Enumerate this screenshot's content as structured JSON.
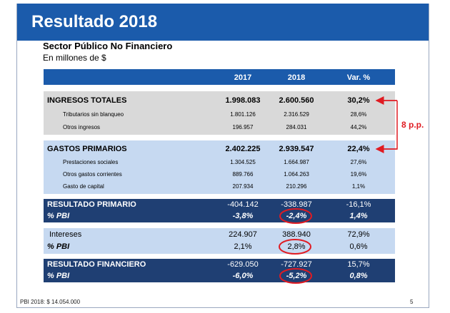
{
  "title": "Resultado 2018",
  "subtitle": "Sector Público No Financiero",
  "units": "En millones de $",
  "columns": [
    "2017",
    "2018",
    "Var. %"
  ],
  "ingresos": {
    "label": "INGRESOS TOTALES",
    "v2017": "1.998.083",
    "v2018": "2.600.560",
    "var": "30,2%",
    "sub": [
      {
        "label": "Tributarios sin blanqueo",
        "v2017": "1.801.126",
        "v2018": "2.316.529",
        "var": "28,6%"
      },
      {
        "label": "Otros ingresos",
        "v2017": "196.957",
        "v2018": "284.031",
        "var": "44,2%"
      }
    ]
  },
  "gastos": {
    "label": "GASTOS PRIMARIOS",
    "v2017": "2.402.225",
    "v2018": "2.939.547",
    "var": "22,4%",
    "sub": [
      {
        "label": "Prestaciones sociales",
        "v2017": "1.304.525",
        "v2018": "1.664.987",
        "var": "27,6%"
      },
      {
        "label": "Otros gastos corrientes",
        "v2017": "889.766",
        "v2018": "1.064.263",
        "var": "19,6%"
      },
      {
        "label": "Gasto de capital",
        "v2017": "207.934",
        "v2018": "210.296",
        "var": "1,1%"
      }
    ]
  },
  "primario": {
    "label": "RESULTADO PRIMARIO",
    "v2017": "-404.142",
    "v2018": "-338.987",
    "var": "-16,1%",
    "pbi_label": "% PBI",
    "pbi2017": "-3,8%",
    "pbi2018": "-2,4%",
    "pbivar": "1,4%"
  },
  "intereses": {
    "label": "Intereses",
    "v2017": "224.907",
    "v2018": "388.940",
    "var": "72,9%",
    "pbi_label": "% PBI",
    "pbi2017": "2,1%",
    "pbi2018": "2,8%",
    "pbivar": "0,6%"
  },
  "financiero": {
    "label": "RESULTADO FINANCIERO",
    "v2017": "-629.050",
    "v2018": "-727.927",
    "var": "15,7%",
    "pbi_label": "% PBI",
    "pbi2017": "-6,0%",
    "pbi2018": "-5,2%",
    "pbivar": "0,8%"
  },
  "annotation": "8 p.p.",
  "footer": "PBI 2018: $ 14.054.000",
  "page_number": "5",
  "colors": {
    "title_bar": "#1b5bab",
    "dark_band": "#1f3f73",
    "light_band": "#c6d9f1",
    "grey_band": "#d9d9d9",
    "highlight": "#e01b22"
  }
}
